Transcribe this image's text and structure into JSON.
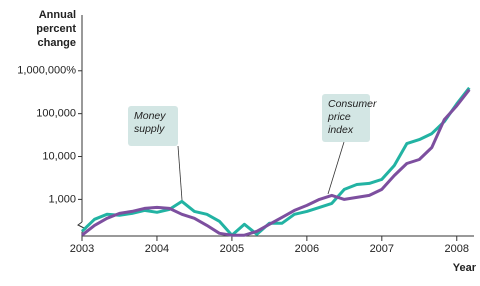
{
  "chart_data": {
    "type": "line",
    "ylabel": "Annual percent change",
    "xlabel": "Year",
    "log_scale": true,
    "x": [
      2003,
      2003.1667,
      2003.3333,
      2003.5,
      2003.6667,
      2003.8333,
      2004,
      2004.1667,
      2004.3333,
      2004.5,
      2004.6667,
      2004.8333,
      2005,
      2005.1667,
      2005.3333,
      2005.5,
      2005.6667,
      2005.8333,
      2006,
      2006.1667,
      2006.3333,
      2006.5,
      2006.6667,
      2006.8333,
      2007,
      2007.1667,
      2007.3333,
      2007.5,
      2007.6667,
      2007.8333,
      2008,
      2008.1667
    ],
    "series": [
      {
        "name": "Money supply",
        "color": "#22b3a3",
        "values": [
          180,
          344,
          450,
          425,
          472,
          555,
          500,
          585,
          900,
          526,
          450,
          308,
          146,
          263,
          153,
          277,
          277,
          450,
          526,
          652,
          807,
          1710,
          2230,
          2360,
          2920,
          6180,
          20000,
          24800,
          34300,
          65200,
          170000,
          401000
        ]
      },
      {
        "name": "Consumer price index",
        "color": "#7d4f9f",
        "values": [
          146,
          248,
          362,
          472,
          526,
          617,
          652,
          617,
          450,
          362,
          248,
          162,
          146,
          146,
          180,
          263,
          381,
          555,
          725,
          1000,
          1240,
          1000,
          1110,
          1240,
          1710,
          3610,
          6880,
          8520,
          16200,
          72600,
          153000,
          362000
        ]
      }
    ],
    "xlim": [
      2003,
      2008.23
    ],
    "xticks": [
      2003,
      2004,
      2005,
      2006,
      2007,
      2008
    ],
    "ylim": [
      140,
      20000000
    ],
    "yticks": [
      {
        "value": 1000,
        "label": "1,000"
      },
      {
        "value": 10000,
        "label": "10,000"
      },
      {
        "value": 100000,
        "label": "100,000"
      },
      {
        "value": 1000000,
        "label": "1,000,000%"
      }
    ]
  }
}
